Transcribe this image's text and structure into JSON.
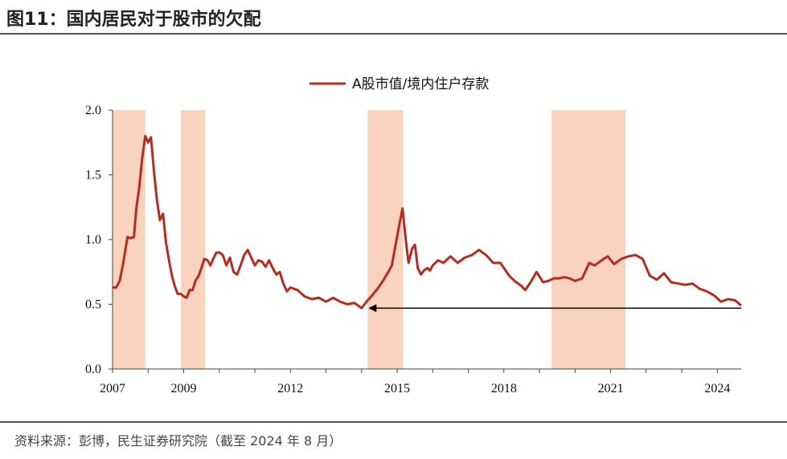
{
  "title": "图11：国内居民对于股市的欠配",
  "source": "资料来源：彭博，民生证券研究院（截至 2024 年 8 月）",
  "colors": {
    "line": "#b82c20",
    "shade": "#f9d3bd",
    "arrow": "#000000",
    "axis": "#444444"
  },
  "chart_data": {
    "type": "line",
    "title": "",
    "xlabel": "",
    "ylabel": "",
    "xlim": [
      2007.0,
      2024.67
    ],
    "ylim": [
      0.0,
      2.0
    ],
    "y_ticks": [
      "0.0",
      "0.5",
      "1.0",
      "1.5",
      "2.0"
    ],
    "x_ticks": [
      "2007",
      "2009",
      "2012",
      "2015",
      "2018",
      "2021",
      "2024"
    ],
    "legend": "top-center",
    "shaded_periods": [
      [
        2007.0,
        2007.92
      ],
      [
        2008.92,
        2009.6
      ],
      [
        2014.17,
        2015.17
      ],
      [
        2019.34,
        2021.42
      ]
    ],
    "annotation": {
      "type": "arrow",
      "from": [
        2024.67,
        0.47
      ],
      "to": [
        2014.17,
        0.47
      ]
    },
    "series": [
      {
        "name": "A股市值/境内住户存款",
        "x": [
          2007.0,
          2007.1,
          2007.2,
          2007.3,
          2007.42,
          2007.5,
          2007.6,
          2007.67,
          2007.75,
          2007.83,
          2007.92,
          2008.0,
          2008.08,
          2008.17,
          2008.25,
          2008.33,
          2008.42,
          2008.5,
          2008.58,
          2008.67,
          2008.75,
          2008.83,
          2008.92,
          2009.0,
          2009.08,
          2009.17,
          2009.25,
          2009.33,
          2009.42,
          2009.5,
          2009.58,
          2009.67,
          2009.75,
          2009.83,
          2009.92,
          2010.0,
          2010.1,
          2010.2,
          2010.3,
          2010.4,
          2010.5,
          2010.6,
          2010.7,
          2010.8,
          2010.9,
          2011.0,
          2011.1,
          2011.2,
          2011.3,
          2011.4,
          2011.5,
          2011.6,
          2011.7,
          2011.8,
          2011.9,
          2012.0,
          2012.2,
          2012.4,
          2012.6,
          2012.8,
          2013.0,
          2013.2,
          2013.4,
          2013.6,
          2013.8,
          2014.0,
          2014.17,
          2014.3,
          2014.45,
          2014.6,
          2014.75,
          2014.85,
          2014.95,
          2015.05,
          2015.15,
          2015.25,
          2015.32,
          2015.42,
          2015.5,
          2015.58,
          2015.67,
          2015.75,
          2015.85,
          2015.92,
          2016.0,
          2016.15,
          2016.3,
          2016.5,
          2016.7,
          2016.9,
          2017.1,
          2017.3,
          2017.5,
          2017.7,
          2017.9,
          2018.0,
          2018.15,
          2018.3,
          2018.5,
          2018.6,
          2018.75,
          2018.92,
          2019.1,
          2019.25,
          2019.4,
          2019.55,
          2019.7,
          2019.85,
          2020.0,
          2020.2,
          2020.4,
          2020.55,
          2020.75,
          2020.92,
          2021.1,
          2021.3,
          2021.5,
          2021.7,
          2021.9,
          2022.1,
          2022.3,
          2022.5,
          2022.7,
          2022.9,
          2023.1,
          2023.3,
          2023.5,
          2023.7,
          2023.9,
          2024.1,
          2024.3,
          2024.5,
          2024.67
        ],
        "values": [
          0.63,
          0.63,
          0.68,
          0.82,
          1.02,
          1.01,
          1.02,
          1.25,
          1.4,
          1.62,
          1.8,
          1.75,
          1.79,
          1.51,
          1.3,
          1.15,
          1.2,
          0.98,
          0.85,
          0.72,
          0.64,
          0.58,
          0.58,
          0.56,
          0.55,
          0.61,
          0.61,
          0.68,
          0.72,
          0.78,
          0.85,
          0.84,
          0.8,
          0.85,
          0.9,
          0.9,
          0.88,
          0.8,
          0.86,
          0.75,
          0.73,
          0.8,
          0.88,
          0.92,
          0.86,
          0.8,
          0.84,
          0.83,
          0.79,
          0.84,
          0.78,
          0.73,
          0.75,
          0.66,
          0.6,
          0.63,
          0.61,
          0.56,
          0.54,
          0.55,
          0.52,
          0.55,
          0.52,
          0.5,
          0.51,
          0.47,
          0.53,
          0.57,
          0.62,
          0.68,
          0.75,
          0.8,
          0.95,
          1.1,
          1.24,
          0.98,
          0.82,
          0.93,
          0.96,
          0.78,
          0.73,
          0.76,
          0.78,
          0.76,
          0.8,
          0.84,
          0.82,
          0.87,
          0.82,
          0.86,
          0.88,
          0.92,
          0.88,
          0.82,
          0.82,
          0.78,
          0.72,
          0.68,
          0.64,
          0.61,
          0.67,
          0.75,
          0.67,
          0.68,
          0.7,
          0.7,
          0.71,
          0.7,
          0.68,
          0.7,
          0.82,
          0.8,
          0.84,
          0.87,
          0.81,
          0.85,
          0.87,
          0.88,
          0.85,
          0.72,
          0.69,
          0.74,
          0.67,
          0.66,
          0.65,
          0.66,
          0.62,
          0.6,
          0.57,
          0.52,
          0.54,
          0.53,
          0.49
        ]
      }
    ]
  }
}
